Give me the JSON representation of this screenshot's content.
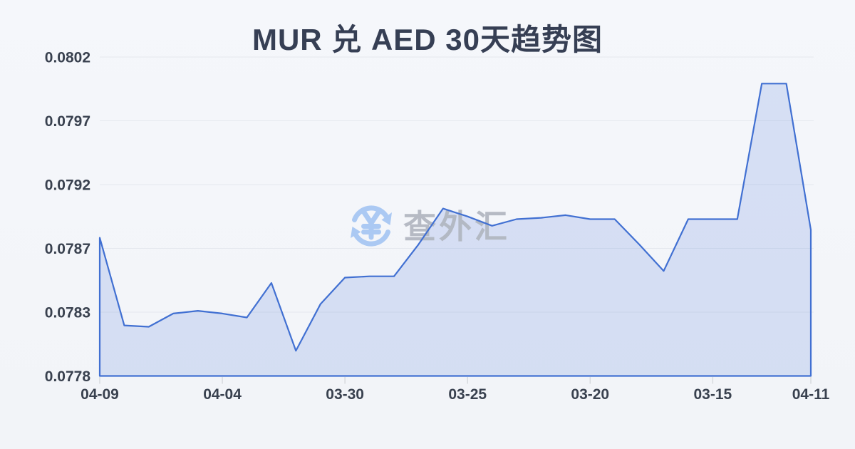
{
  "title": "MUR 兑 AED 30天趋势图",
  "watermark": {
    "text": "查外汇",
    "icon": "currency-exchange-icon"
  },
  "theme": {
    "background": "#f3f5f9",
    "line_color": "#4170d2",
    "area_fill": "rgba(68,114,212,0.17)",
    "grid_color": "#e5e8ee",
    "tick_color": "#d7dade",
    "label_color": "#39414f",
    "title_color": "#363f54",
    "watermark_text_color": "#b1b6c0",
    "watermark_icon_color": "#a5c6f3"
  },
  "chart_data": {
    "type": "area",
    "title": "MUR 兑 AED 30天趋势图",
    "xlabel": "",
    "ylabel": "",
    "legend": "none",
    "grid": "horizontal",
    "ylim": [
      0.0778,
      0.0802
    ],
    "y_tick_labels": [
      "0.0802",
      "0.0797",
      "0.0792",
      "0.0787",
      "0.0783",
      "0.0778"
    ],
    "x_tick_labels": [
      "04-09",
      "04-04",
      "03-30",
      "03-25",
      "03-20",
      "03-15",
      "04-11"
    ],
    "tick_day_indices": [
      0,
      5,
      10,
      15,
      20,
      25,
      29
    ],
    "values": [
      0.07884,
      0.07818,
      0.07817,
      0.07827,
      0.07829,
      0.07827,
      0.07824,
      0.0785,
      0.07799,
      0.07834,
      0.07854,
      0.07855,
      0.07855,
      0.07879,
      0.07906,
      0.079,
      0.07893,
      0.07898,
      0.07899,
      0.07901,
      0.07898,
      0.07898,
      0.07879,
      0.07859,
      0.07898,
      0.07898,
      0.07898,
      0.08,
      0.08,
      0.0789
    ]
  }
}
